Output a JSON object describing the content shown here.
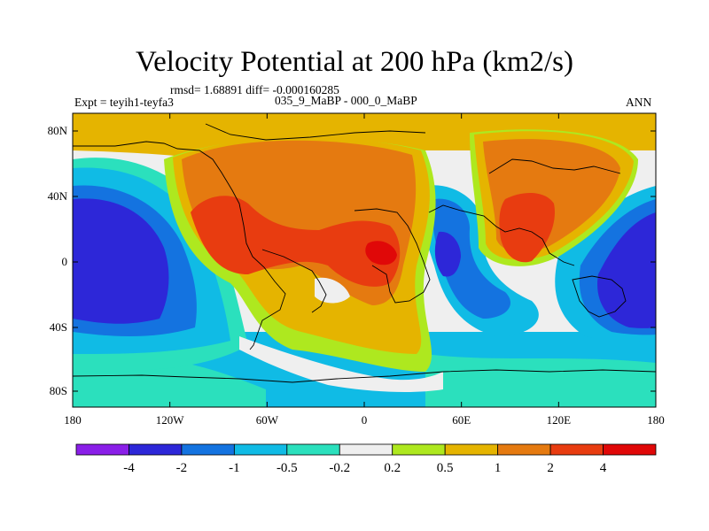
{
  "title": "Velocity Potential at 200 hPa (km2/s)",
  "stats": "rmsd= 1.68891 diff= -0.000160285",
  "experiment": "Expt = teyih1-teyfa3",
  "period": "035_9_MaBP - 000_0_MaBP",
  "season": "ANN",
  "lat_labels": [
    "80N",
    "40N",
    "0",
    "40S",
    "80S"
  ],
  "lon_labels": [
    "180",
    "120W",
    "60W",
    "0",
    "60E",
    "120E",
    "180"
  ],
  "colorbar": {
    "colors": [
      "#8a1fe8",
      "#2d27d8",
      "#1473e0",
      "#10bbe5",
      "#2be0bd",
      "#efefef",
      "#aee81f",
      "#e5b400",
      "#e57a10",
      "#e83c10",
      "#e00808"
    ],
    "labels": [
      "-4",
      "-2",
      "-1",
      "-0.5",
      "-0.2",
      "0.2",
      "0.5",
      "1",
      "2",
      "4"
    ]
  }
}
